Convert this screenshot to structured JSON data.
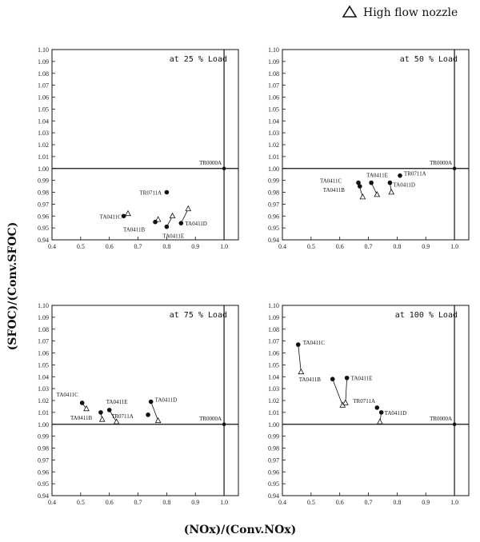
{
  "legend": {
    "marker": "triangle-open",
    "label": "High flow nozzle"
  },
  "xlabel": "(NOx)/(Conv.NOx)",
  "ylabel": "(SFOC)/(Conv.SFOC)",
  "chart_data": [
    {
      "type": "scatter",
      "title": "at 25 % Load",
      "xlim": [
        0.4,
        1.05
      ],
      "ylim": [
        0.94,
        1.1
      ],
      "xticks": [
        "0.4",
        "0.5",
        "0.6",
        "0.7",
        "0.8",
        "0.9",
        "1.0"
      ],
      "yticks": [
        "0.94",
        "0.95",
        "0.96",
        "0.97",
        "0.98",
        "0.99",
        "1.00",
        "1.01",
        "1.02",
        "1.03",
        "1.04",
        "1.05",
        "1.06",
        "1.07",
        "1.08",
        "1.09",
        "1.10"
      ],
      "reference": {
        "label": "TR0000A",
        "x": 1.0,
        "y": 1.0
      },
      "points": [
        {
          "label": "TA0411C",
          "conventional": [
            0.65,
            0.96
          ],
          "high_flow": [
            0.665,
            0.962
          ]
        },
        {
          "label": "TA0411B",
          "conventional": [
            0.76,
            0.955
          ],
          "high_flow": [
            0.77,
            0.957
          ]
        },
        {
          "label": "TA0411E",
          "conventional": [
            0.8,
            0.951
          ],
          "high_flow": [
            0.82,
            0.96
          ]
        },
        {
          "label": "TA0411D",
          "conventional": [
            0.85,
            0.954
          ],
          "high_flow": [
            0.875,
            0.966
          ]
        },
        {
          "label": "TR0711A",
          "conventional": [
            0.8,
            0.98
          ],
          "high_flow": null
        }
      ]
    },
    {
      "type": "scatter",
      "title": "at 50 % Load",
      "xlim": [
        0.4,
        1.05
      ],
      "ylim": [
        0.94,
        1.1
      ],
      "xticks": [
        "0.4",
        "0.5",
        "0.6",
        "0.7",
        "0.8",
        "0.9",
        "1.0"
      ],
      "yticks": [
        "0.94",
        "0.95",
        "0.96",
        "0.97",
        "0.98",
        "0.99",
        "1.00",
        "1.01",
        "1.02",
        "1.03",
        "1.04",
        "1.05",
        "1.06",
        "1.07",
        "1.08",
        "1.09",
        "1.10"
      ],
      "reference": {
        "label": "TR0000A",
        "x": 1.0,
        "y": 1.0
      },
      "points": [
        {
          "label": "TA0411C",
          "conventional": [
            0.665,
            0.988
          ],
          "high_flow": [
            0.68,
            0.976
          ]
        },
        {
          "label": "TA0411B",
          "conventional": [
            0.67,
            0.985
          ],
          "high_flow": null
        },
        {
          "label": "TA0411E",
          "conventional": [
            0.71,
            0.988
          ],
          "high_flow": [
            0.73,
            0.978
          ]
        },
        {
          "label": "TA0411D",
          "conventional": [
            0.775,
            0.988
          ],
          "high_flow": [
            0.78,
            0.98
          ]
        },
        {
          "label": "TR0711A",
          "conventional": [
            0.81,
            0.994
          ],
          "high_flow": null
        }
      ]
    },
    {
      "type": "scatter",
      "title": "at 75 % Load",
      "xlim": [
        0.4,
        1.05
      ],
      "ylim": [
        0.94,
        1.1
      ],
      "xticks": [
        "0.4",
        "0.5",
        "0.6",
        "0.7",
        "0.8",
        "0.9",
        "1.0"
      ],
      "yticks": [
        "0.94",
        "0.95",
        "0.96",
        "0.97",
        "0.98",
        "0.99",
        "1.00",
        "1.01",
        "1.02",
        "1.03",
        "1.04",
        "1.05",
        "1.06",
        "1.07",
        "1.08",
        "1.09",
        "1.10"
      ],
      "reference": {
        "label": "TR0000A",
        "x": 1.0,
        "y": 1.0
      },
      "points": [
        {
          "label": "TA0411C",
          "conventional": [
            0.505,
            1.018
          ],
          "high_flow": [
            0.52,
            1.013
          ]
        },
        {
          "label": "TA0411B",
          "conventional": [
            0.57,
            1.01
          ],
          "high_flow": [
            0.575,
            1.004
          ]
        },
        {
          "label": "TA0411E",
          "conventional": [
            0.6,
            1.012
          ],
          "high_flow": [
            0.625,
            1.002
          ]
        },
        {
          "label": "TR0711A",
          "conventional": [
            0.735,
            1.008
          ],
          "high_flow": null
        },
        {
          "label": "TA0411D",
          "conventional": [
            0.745,
            1.019
          ],
          "high_flow": [
            0.77,
            1.003
          ]
        }
      ]
    },
    {
      "type": "scatter",
      "title": "at 100 % Load",
      "xlim": [
        0.4,
        1.05
      ],
      "ylim": [
        0.94,
        1.1
      ],
      "xticks": [
        "0.4",
        "0.5",
        "0.6",
        "0.7",
        "0.8",
        "0.9",
        "1.0"
      ],
      "yticks": [
        "0.94",
        "0.95",
        "0.96",
        "0.97",
        "0.98",
        "0.99",
        "1.00",
        "1.01",
        "1.02",
        "1.03",
        "1.04",
        "1.05",
        "1.06",
        "1.07",
        "1.08",
        "1.09",
        "1.10"
      ],
      "reference": {
        "label": "TR0000A",
        "x": 1.0,
        "y": 1.0
      },
      "points": [
        {
          "label": "TA0411C",
          "conventional": [
            0.455,
            1.067
          ],
          "high_flow": [
            0.465,
            1.044
          ]
        },
        {
          "label": "TA0411B",
          "conventional": [
            0.575,
            1.038
          ],
          "high_flow": [
            0.61,
            1.016
          ]
        },
        {
          "label": "TA0411E",
          "conventional": [
            0.625,
            1.039
          ],
          "high_flow": [
            0.62,
            1.018
          ]
        },
        {
          "label": "TR0711A",
          "conventional": [
            0.73,
            1.014
          ],
          "high_flow": null
        },
        {
          "label": "TA0411D",
          "conventional": [
            0.745,
            1.01
          ],
          "high_flow": [
            0.74,
            1.002
          ]
        }
      ]
    }
  ]
}
